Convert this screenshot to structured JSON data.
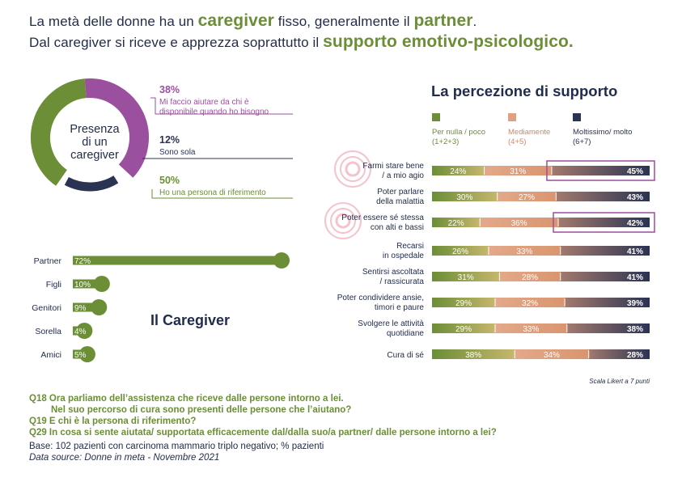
{
  "title": {
    "line1_pre": "La metà delle donne ha un ",
    "line1_hl1": "caregiver",
    "line1_mid": " fisso, generalmente il ",
    "line1_hl2": "partner",
    "line1_post": ".",
    "line2_pre": "Dal caregiver si riceve e apprezza soprattutto il ",
    "line2_hl": "supporto emotivo-psicologico."
  },
  "colors": {
    "green": "#6b8e36",
    "purple": "#9b4f9f",
    "navy": "#2b3352",
    "salmon": "#e0a081",
    "text": "#222d4d",
    "highlight_circle": "#f0a9b6"
  },
  "chart_data": [
    {
      "type": "pie",
      "title": "Presenza di un caregiver",
      "title_lines": [
        "Presenza",
        "di un",
        "caregiver"
      ],
      "slices": [
        {
          "pct": "38%",
          "value": 38,
          "label_lines": [
            "Mi faccio aiutare da chi è",
            "disponibile quando ho bisogno"
          ],
          "color": "#9b4f9f"
        },
        {
          "pct": "12%",
          "value": 12,
          "label_lines": [
            "Sono sola"
          ],
          "color": "#2b3352"
        },
        {
          "pct": "50%",
          "value": 50,
          "label_lines": [
            "Ho una persona di riferimento"
          ],
          "color": "#6b8e36"
        }
      ]
    },
    {
      "type": "bar",
      "title": "Il Caregiver",
      "categories": [
        "Partner",
        "Figli",
        "Genitori",
        "Sorella",
        "Amici"
      ],
      "values": [
        72,
        10,
        9,
        4,
        5
      ],
      "labels": [
        "72%",
        "10%",
        "9%",
        "4%",
        "5%"
      ]
    },
    {
      "type": "bar",
      "title": "La percezione di supporto",
      "legend": [
        {
          "name": "Per nulla / poco",
          "sub": "(1+2+3)",
          "color": "#6b8e36"
        },
        {
          "name": "Mediamente",
          "sub": "(4+5)",
          "color": "#e0a081"
        },
        {
          "name": "Moltissimo/ molto",
          "sub": "(6+7)",
          "color": "#2b3352"
        }
      ],
      "categories": [
        [
          "Farmi stare bene",
          "/ a mio agio"
        ],
        [
          "Poter parlare",
          "della malattia"
        ],
        [
          "Poter essere sé stessa",
          "con alti e bassi"
        ],
        [
          "Recarsi",
          "in ospedale"
        ],
        [
          "Sentirsi ascoltata",
          "/ rassicurata"
        ],
        [
          "Poter condividere ansie,",
          "timori e paure"
        ],
        [
          "Svolgere le attività",
          "quotidiane"
        ],
        [
          "Cura di sé"
        ]
      ],
      "series": [
        {
          "name": "Per nulla / poco",
          "values": [
            24,
            30,
            22,
            26,
            31,
            29,
            29,
            38
          ],
          "labels": [
            "24%",
            "30%",
            "22%",
            "26%",
            "31%",
            "29%",
            "29%",
            "38%"
          ]
        },
        {
          "name": "Mediamente",
          "values": [
            31,
            27,
            36,
            33,
            28,
            32,
            33,
            34
          ],
          "labels": [
            "31%",
            "27%",
            "36%",
            "33%",
            "28%",
            "32%",
            "33%",
            "34%"
          ]
        },
        {
          "name": "Moltissimo/ molto",
          "values": [
            45,
            43,
            42,
            41,
            41,
            39,
            38,
            28
          ],
          "labels": [
            "45%",
            "43%",
            "42%",
            "41%",
            "41%",
            "39%",
            "38%",
            "28%"
          ]
        }
      ],
      "highlighted_rows": [
        0,
        2
      ],
      "stacked": true,
      "xlim": [
        0,
        100
      ]
    }
  ],
  "scale_note": "Scala Likert a 7 punti",
  "footnotes": {
    "q18_a": "Q18  Ora parliamo dell’assistenza che riceve dalle persone intorno a lei.",
    "q18_b": "Nel suo percorso di cura sono presenti delle persone che l’aiutano?",
    "q19": "Q19  E chi è la persona di riferimento?",
    "q29": "Q29 In cosa si sente aiutata/ supportata efficacemente dal/dalla suo/a partner/ dalle persone intorno a lei?",
    "base": "Base: 102 pazienti con carcinoma mammario triplo negativo; % pazienti",
    "source": "Data source: Donne in meta - Novembre 2021"
  }
}
